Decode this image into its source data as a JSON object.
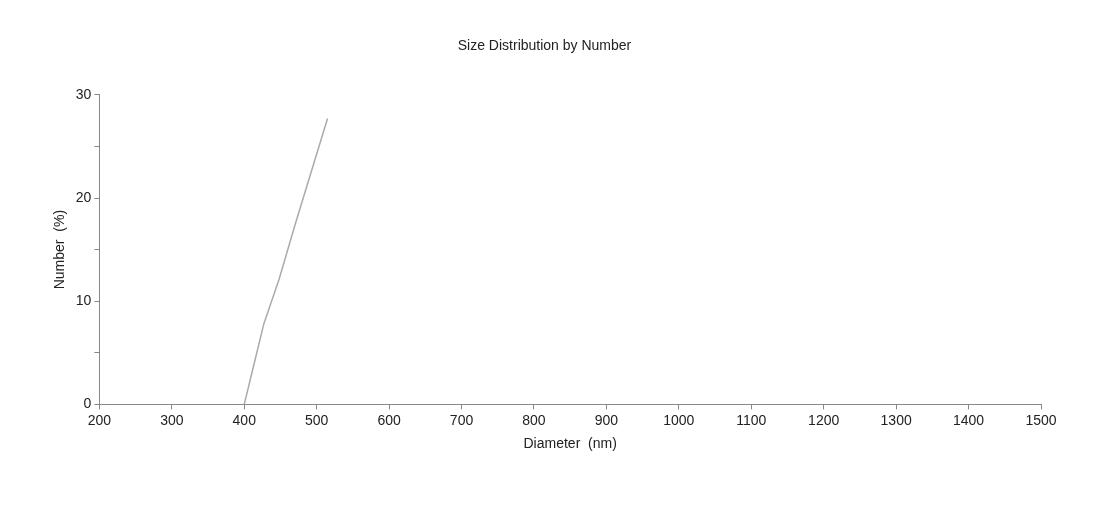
{
  "chart_data": {
    "type": "line",
    "title": "Size Distribution by Number",
    "xlabel": "Diameter  (nm)",
    "ylabel": "Number  (%)",
    "series": [
      {
        "color": "#aaaaaa",
        "x": [
          400,
          427,
          448,
          471,
          515
        ],
        "values": [
          0,
          7.8,
          12.1,
          17.6,
          27.7
        ]
      }
    ],
    "xlim": [
      200,
      1500
    ],
    "xticks": [
      200,
      300,
      400,
      500,
      600,
      700,
      800,
      900,
      1000,
      1100,
      1200,
      1300,
      1400,
      1500
    ],
    "ylim": [
      0,
      30
    ],
    "yticks": [
      0,
      {
        "value": 5,
        "label": null
      },
      10,
      {
        "value": 15,
        "label": null
      },
      20,
      {
        "value": 25,
        "label": null
      },
      30
    ],
    "grid": false,
    "legend": false,
    "marker": "none",
    "line_style": "solid"
  }
}
